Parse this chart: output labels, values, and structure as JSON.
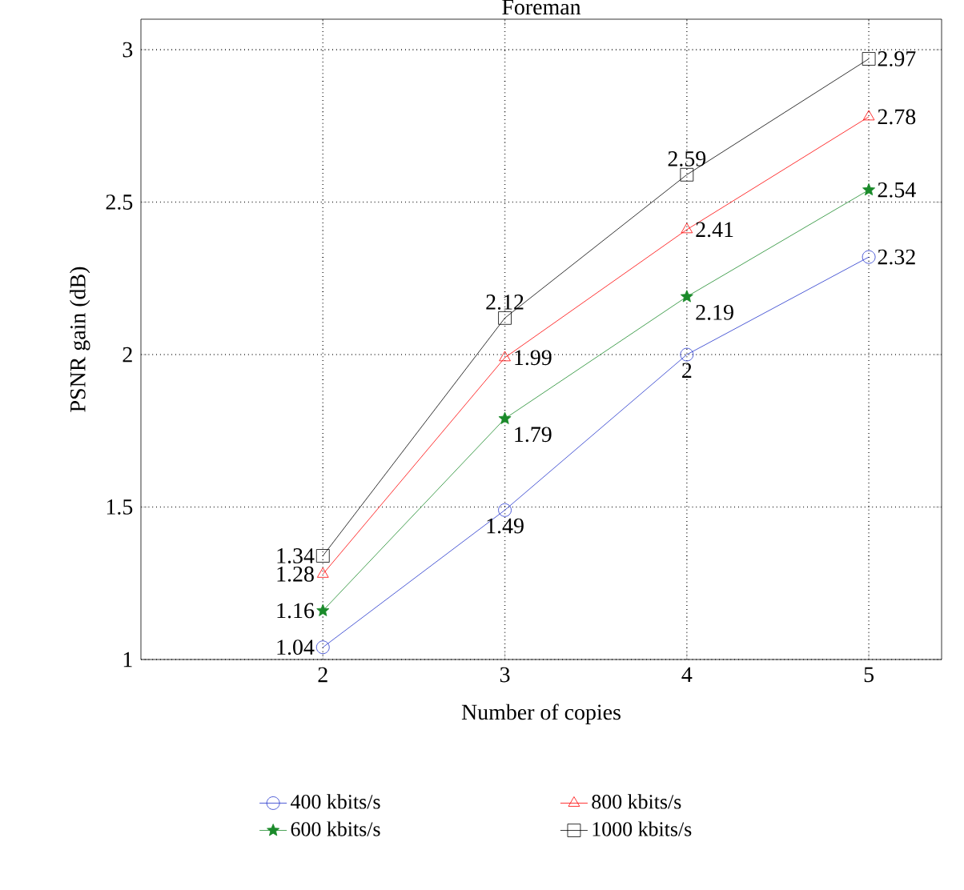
{
  "chart_data": {
    "type": "line",
    "title": "Foreman",
    "xlabel": "Number of copies",
    "ylabel": "PSNR gain (dB)",
    "x": [
      2,
      3,
      4,
      5
    ],
    "series": [
      {
        "name": "400 kbits/s",
        "color": "#2233cc",
        "marker": "circle",
        "values": [
          1.04,
          1.49,
          2,
          2.32
        ]
      },
      {
        "name": "600 kbits/s",
        "color": "#1a8a2a",
        "marker": "star",
        "values": [
          1.16,
          1.79,
          2.19,
          2.54
        ]
      },
      {
        "name": "800 kbits/s",
        "color": "#ff0000",
        "marker": "triangle",
        "values": [
          1.28,
          1.99,
          2.41,
          2.78
        ]
      },
      {
        "name": "1000 kbits/s",
        "color": "#000000",
        "marker": "square",
        "values": [
          1.34,
          2.12,
          2.59,
          2.97
        ]
      }
    ],
    "xlim": [
      1,
      5.4
    ],
    "ylim": [
      1,
      3.1
    ],
    "xticks": [
      2,
      3,
      4,
      5
    ],
    "yticks": [
      1,
      1.5,
      2,
      2.5,
      3
    ],
    "grid": true,
    "legend": "bottom",
    "data_labels": true,
    "line_style": "solid"
  }
}
